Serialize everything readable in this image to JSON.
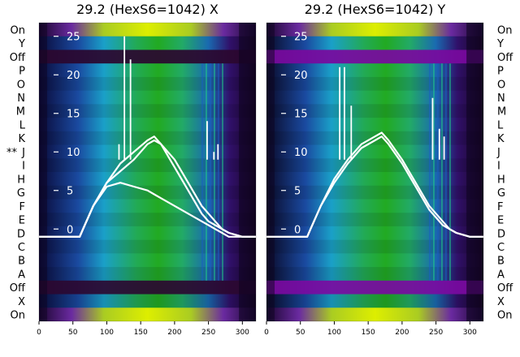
{
  "chart_data": [
    {
      "type": "heatmap",
      "title": "29.2 (HexS6=1042) X",
      "row_labels": [
        "On",
        "Y",
        "Off",
        "P",
        "O",
        "N",
        "M",
        "L",
        "K",
        "J",
        "I",
        "H",
        "G",
        "F",
        "E",
        "D",
        "C",
        "B",
        "A",
        "Off",
        "X",
        "On"
      ],
      "row_marks": {
        "9": "**"
      },
      "x_ticks": [
        0,
        50,
        100,
        150,
        200,
        250,
        300
      ],
      "xlim": [
        0,
        320
      ],
      "y_overlay_ticks": [
        0,
        5,
        10,
        15,
        20,
        25
      ],
      "y_overlay_ticklabels": [
        "0",
        "5",
        "10",
        "15",
        "20",
        "25"
      ],
      "overlay": {
        "type": "line",
        "color": "#ffffff",
        "x": [
          0,
          25,
          50,
          60,
          65,
          80,
          100,
          120,
          140,
          160,
          170,
          180,
          200,
          220,
          240,
          250,
          260,
          270,
          280,
          300,
          320
        ],
        "series": [
          {
            "values": [
              -1,
              -1,
              -1,
              -1,
              0,
              3,
              6,
              8.5,
              10,
              11.5,
              12,
              11,
              9,
              6,
              3,
              2,
              1,
              0,
              -0.5,
              -1,
              -1
            ]
          },
          {
            "values": [
              -1,
              -1,
              -1,
              -1,
              0,
              3,
              6,
              7.5,
              9,
              11,
              11.5,
              11,
              8,
              5,
              2,
              1,
              0.5,
              0,
              -0.5,
              -1,
              -1
            ]
          },
          {
            "values": [
              -1,
              -1,
              -1,
              -1,
              0,
              3,
              5.5,
              6,
              5.5,
              5,
              4.5,
              4,
              3,
              2,
              1,
              0.5,
              0,
              -0.5,
              -1,
              -1,
              -1
            ]
          }
        ],
        "spikes": [
          {
            "x": 118,
            "y": 11
          },
          {
            "x": 126,
            "y": 25
          },
          {
            "x": 135,
            "y": 22
          },
          {
            "x": 248,
            "y": 14
          },
          {
            "x": 258,
            "y": 10
          },
          {
            "x": 264,
            "y": 11
          }
        ]
      },
      "colors": {
        "band_top": "#9acd16",
        "band_bottom": "#aaee00",
        "off_band": "#2b0830",
        "center": "#22aa22",
        "edge": "#0a0a3a"
      }
    },
    {
      "type": "heatmap",
      "title": "29.2 (HexS6=1042) Y",
      "row_labels": [
        "On",
        "Y",
        "Off",
        "P",
        "O",
        "N",
        "M",
        "L",
        "K",
        "J",
        "I",
        "H",
        "G",
        "F",
        "E",
        "D",
        "C",
        "B",
        "A",
        "Off",
        "X",
        "On"
      ],
      "x_ticks": [
        0,
        50,
        100,
        150,
        200,
        250,
        300
      ],
      "xlim": [
        0,
        320
      ],
      "y_overlay_ticks": [
        0,
        5,
        10,
        15,
        20,
        25
      ],
      "y_overlay_ticklabels": [
        "0",
        "5",
        "10",
        "15",
        "20",
        "25"
      ],
      "overlay": {
        "type": "line",
        "color": "#ffffff",
        "x": [
          0,
          25,
          50,
          60,
          65,
          80,
          100,
          120,
          140,
          160,
          170,
          180,
          200,
          220,
          240,
          250,
          260,
          270,
          280,
          300,
          320
        ],
        "series": [
          {
            "values": [
              -1,
              -1,
              -1,
              -1,
              0,
              3,
              6.5,
              9,
              11,
              12,
              12.5,
              11.5,
              9,
              6,
              3,
              2,
              1,
              0,
              -0.5,
              -1,
              -1
            ]
          },
          {
            "values": [
              -1,
              -1,
              -1,
              -1,
              0,
              3,
              6,
              8.5,
              10.5,
              11.5,
              12,
              11,
              8.5,
              5.5,
              2.5,
              1.5,
              0.5,
              0,
              -0.5,
              -1,
              -1
            ]
          }
        ],
        "spikes": [
          {
            "x": 108,
            "y": 21
          },
          {
            "x": 115,
            "y": 21
          },
          {
            "x": 125,
            "y": 16
          },
          {
            "x": 245,
            "y": 17
          },
          {
            "x": 255,
            "y": 13
          },
          {
            "x": 262,
            "y": 12
          }
        ]
      },
      "colors": {
        "band_top": "#c8ee00",
        "band_bottom": "#aaee00",
        "off_band": "#7a0aa0",
        "center": "#22aa22",
        "edge": "#0a0a3a"
      }
    }
  ]
}
